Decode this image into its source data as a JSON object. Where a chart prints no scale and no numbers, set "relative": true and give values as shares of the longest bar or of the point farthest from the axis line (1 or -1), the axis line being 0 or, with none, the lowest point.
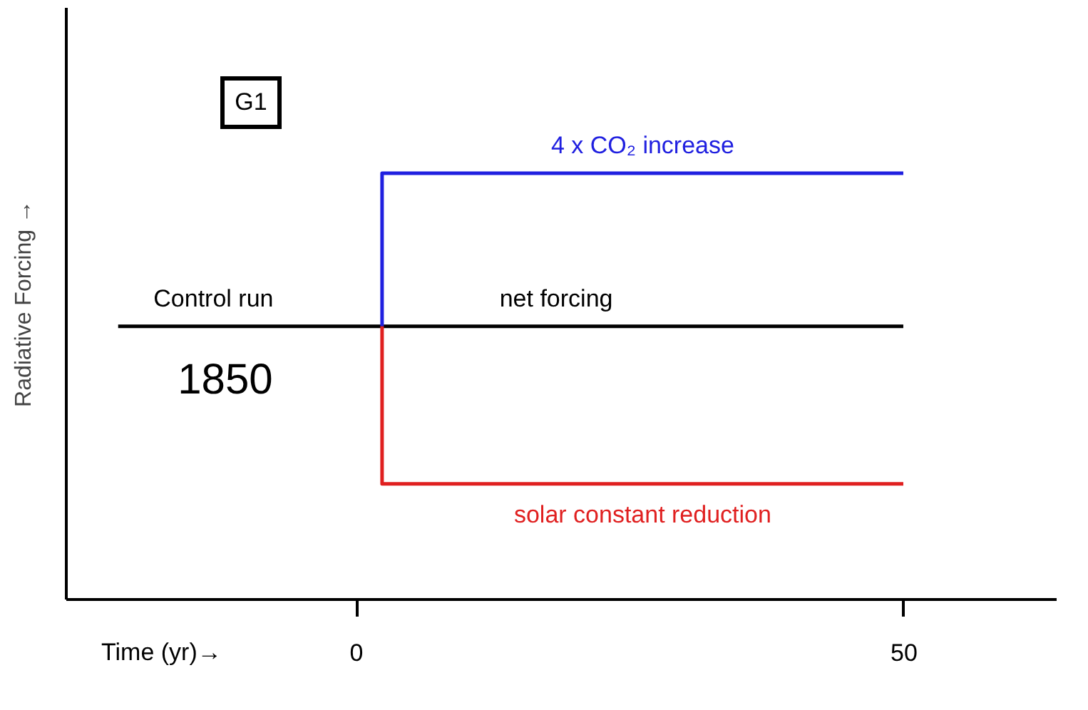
{
  "chart_data": {
    "type": "line",
    "relative": true,
    "xlabel": "Time (yr)→",
    "ylabel": "Radiative Forcing →",
    "xlim": [
      -26.5,
      64
    ],
    "xticks": [
      0,
      50
    ],
    "grid": false,
    "marker": "none",
    "line_style": "solid",
    "annotations": [
      "G1",
      "1850",
      {
        "text": "Control run",
        "x": -13,
        "y": 0.64
      },
      {
        "text": "net forcing",
        "x": 18.3,
        "y": 0.64
      }
    ],
    "series": [
      {
        "color": "#000000",
        "x": [
          -21.7,
          50
        ],
        "values": [
          0.64,
          0.64
        ]
      },
      {
        "name": "4 x CO₂ increase",
        "color": "#2020e0",
        "x": [
          2.4,
          2.4,
          50
        ],
        "values": [
          0.64,
          1,
          1
        ]
      },
      {
        "name": "solar constant reduction",
        "color": "#e02020",
        "x": [
          2.4,
          2.4,
          50
        ],
        "values": [
          0.64,
          0.27,
          0.27
        ]
      }
    ]
  }
}
